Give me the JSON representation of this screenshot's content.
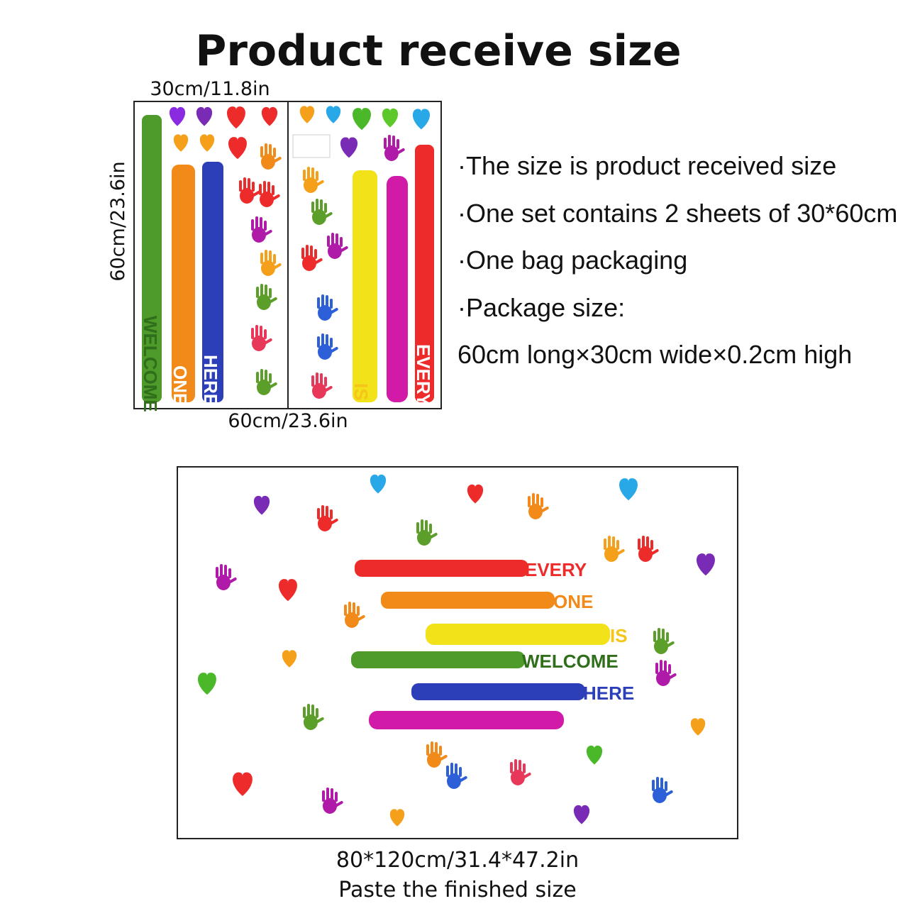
{
  "header": {
    "title": "Product receive size"
  },
  "sheet": {
    "width_label": "30cm/11.8in",
    "height_label": "60cm/23.6in",
    "bottom_label": "60cm/23.6in",
    "stripe_words": [
      "WELCOME",
      "ONE",
      "HERE",
      "IS",
      "EVERY"
    ]
  },
  "specs": [
    "·The size is product received size",
    "·One set contains 2 sheets of 30*60cm",
    "·One bag packaging",
    "·Package size:",
    "60cm long×30cm wide×0.2cm high"
  ],
  "finished": {
    "stripe_words": [
      "EVERY",
      "ONE",
      "IS",
      "WELCOME",
      "HERE"
    ],
    "size": "80*120cm/31.4*47.2in",
    "caption": "Paste the finished size"
  }
}
